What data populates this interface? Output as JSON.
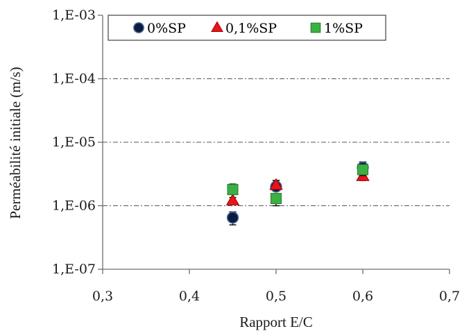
{
  "chart_data": {
    "type": "scatter",
    "xlabel": "Rapport E/C",
    "ylabel": "Perméabilité initiale (m/s)",
    "xlim": [
      0.3,
      0.7
    ],
    "ylim": [
      1e-07,
      0.001
    ],
    "yscale": "log",
    "x_ticks": [
      0.3,
      0.4,
      0.5,
      0.6,
      0.7
    ],
    "x_tick_labels": [
      "0,3",
      "0,4",
      "0,5",
      "0,6",
      "0,7"
    ],
    "y_ticks": [
      1e-07,
      1e-06,
      1e-05,
      0.0001,
      0.001
    ],
    "y_tick_labels": [
      "1,E-07",
      "1,E-06",
      "1,E-05",
      "1,E-04",
      "1,E-03"
    ],
    "grid": "horizontal dash-dot",
    "legend_position": "top",
    "series": [
      {
        "name": "0%SP",
        "marker": "circle",
        "color": "#0d1b3e",
        "edge_color": "#4a6fa5",
        "points": [
          {
            "x": 0.45,
            "y": 6.5e-07,
            "err_low": 5e-07,
            "err_high": 8e-07
          },
          {
            "x": 0.5,
            "y": 2e-06,
            "err_low": 1.7e-06,
            "err_high": 2.5e-06
          },
          {
            "x": 0.6,
            "y": 4e-06,
            "err_low": 3.2e-06,
            "err_high": 4.9e-06
          }
        ]
      },
      {
        "name": "0,1%SP",
        "marker": "triangle",
        "color": "#e8141b",
        "edge_color": "#a00000",
        "points": [
          {
            "x": 0.45,
            "y": 1.2e-06,
            "err_low": 1.1e-06,
            "err_high": 1.35e-06
          },
          {
            "x": 0.5,
            "y": 2.1e-06,
            "err_low": 1.8e-06,
            "err_high": 2.5e-06
          },
          {
            "x": 0.6,
            "y": 2.9e-06,
            "err_low": 2.5e-06,
            "err_high": 3.3e-06
          }
        ]
      },
      {
        "name": "1%SP",
        "marker": "square",
        "color": "#3cb043",
        "edge_color": "#1e7a26",
        "points": [
          {
            "x": 0.45,
            "y": 1.8e-06,
            "err_low": 1.5e-06,
            "err_high": 2.2e-06
          },
          {
            "x": 0.5,
            "y": 1.3e-06,
            "err_low": 1e-06,
            "err_high": 1.5e-06
          },
          {
            "x": 0.6,
            "y": 3.7e-06,
            "err_low": 3e-06,
            "err_high": 4.4e-06
          }
        ]
      }
    ]
  }
}
